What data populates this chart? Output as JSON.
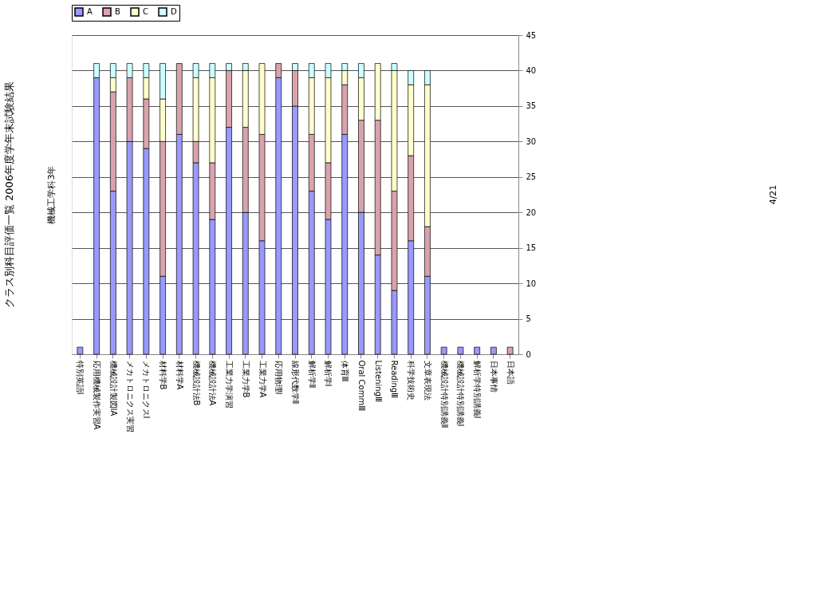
{
  "chart_data": {
    "type": "bar",
    "title": "クラス別科目評価一覧  2006年度学年末試験結果",
    "subtitle": "機械工学科3年",
    "categories": [
      "特別英語Ⅰ",
      "応用機械製作実習A",
      "機械設計製図ⅠA",
      "メカトロニクス実習",
      "メカトロニクスⅠ",
      "材料学B",
      "材料学A",
      "機械設計法B",
      "機械設計法A",
      "工業力学演習",
      "工業力学B",
      "工業力学A",
      "応用物理Ⅰ",
      "線形代数学Ⅱ",
      "解析学Ⅱ",
      "解析学Ⅰ",
      "体育Ⅲ",
      "Oral CommⅢ",
      "ListeningⅢ",
      "ReadingⅢ",
      "科学技術史",
      "文章表現法",
      "機械設計特別講義Ⅱ",
      "機械設計特別講義Ⅰ",
      "解析学特別講義Ⅰ",
      "日本事情",
      "日本語"
    ],
    "series": [
      {
        "name": "A",
        "color": "#9999ff",
        "values": [
          1,
          39,
          23,
          30,
          29,
          11,
          31,
          27,
          19,
          32,
          20,
          16,
          39,
          35,
          23,
          19,
          31,
          20,
          14,
          9,
          16,
          11,
          1,
          1,
          1,
          1,
          0
        ]
      },
      {
        "name": "B",
        "color": "#d9a3ae",
        "values": [
          0,
          0,
          14,
          9,
          7,
          19,
          10,
          3,
          8,
          8,
          12,
          15,
          2,
          5,
          8,
          8,
          7,
          13,
          19,
          14,
          12,
          7,
          0,
          0,
          0,
          0,
          1
        ]
      },
      {
        "name": "C",
        "color": "#ffffcc",
        "values": [
          0,
          0,
          2,
          0,
          3,
          6,
          0,
          9,
          12,
          0,
          8,
          10,
          0,
          0,
          8,
          12,
          2,
          6,
          8,
          17,
          10,
          20,
          0,
          0,
          0,
          0,
          0
        ]
      },
      {
        "name": "D",
        "color": "#ccffff",
        "values": [
          0,
          2,
          2,
          2,
          2,
          5,
          0,
          2,
          2,
          1,
          1,
          0,
          0,
          1,
          2,
          2,
          1,
          2,
          0,
          1,
          2,
          2,
          0,
          0,
          0,
          0,
          0
        ]
      }
    ],
    "stacked": true,
    "ylim": [
      0,
      45
    ],
    "yticks": [
      0,
      5,
      10,
      15,
      20,
      25,
      30,
      35,
      40,
      45
    ],
    "grid": "y",
    "legend": "top",
    "annotations": [
      "4/21"
    ]
  }
}
